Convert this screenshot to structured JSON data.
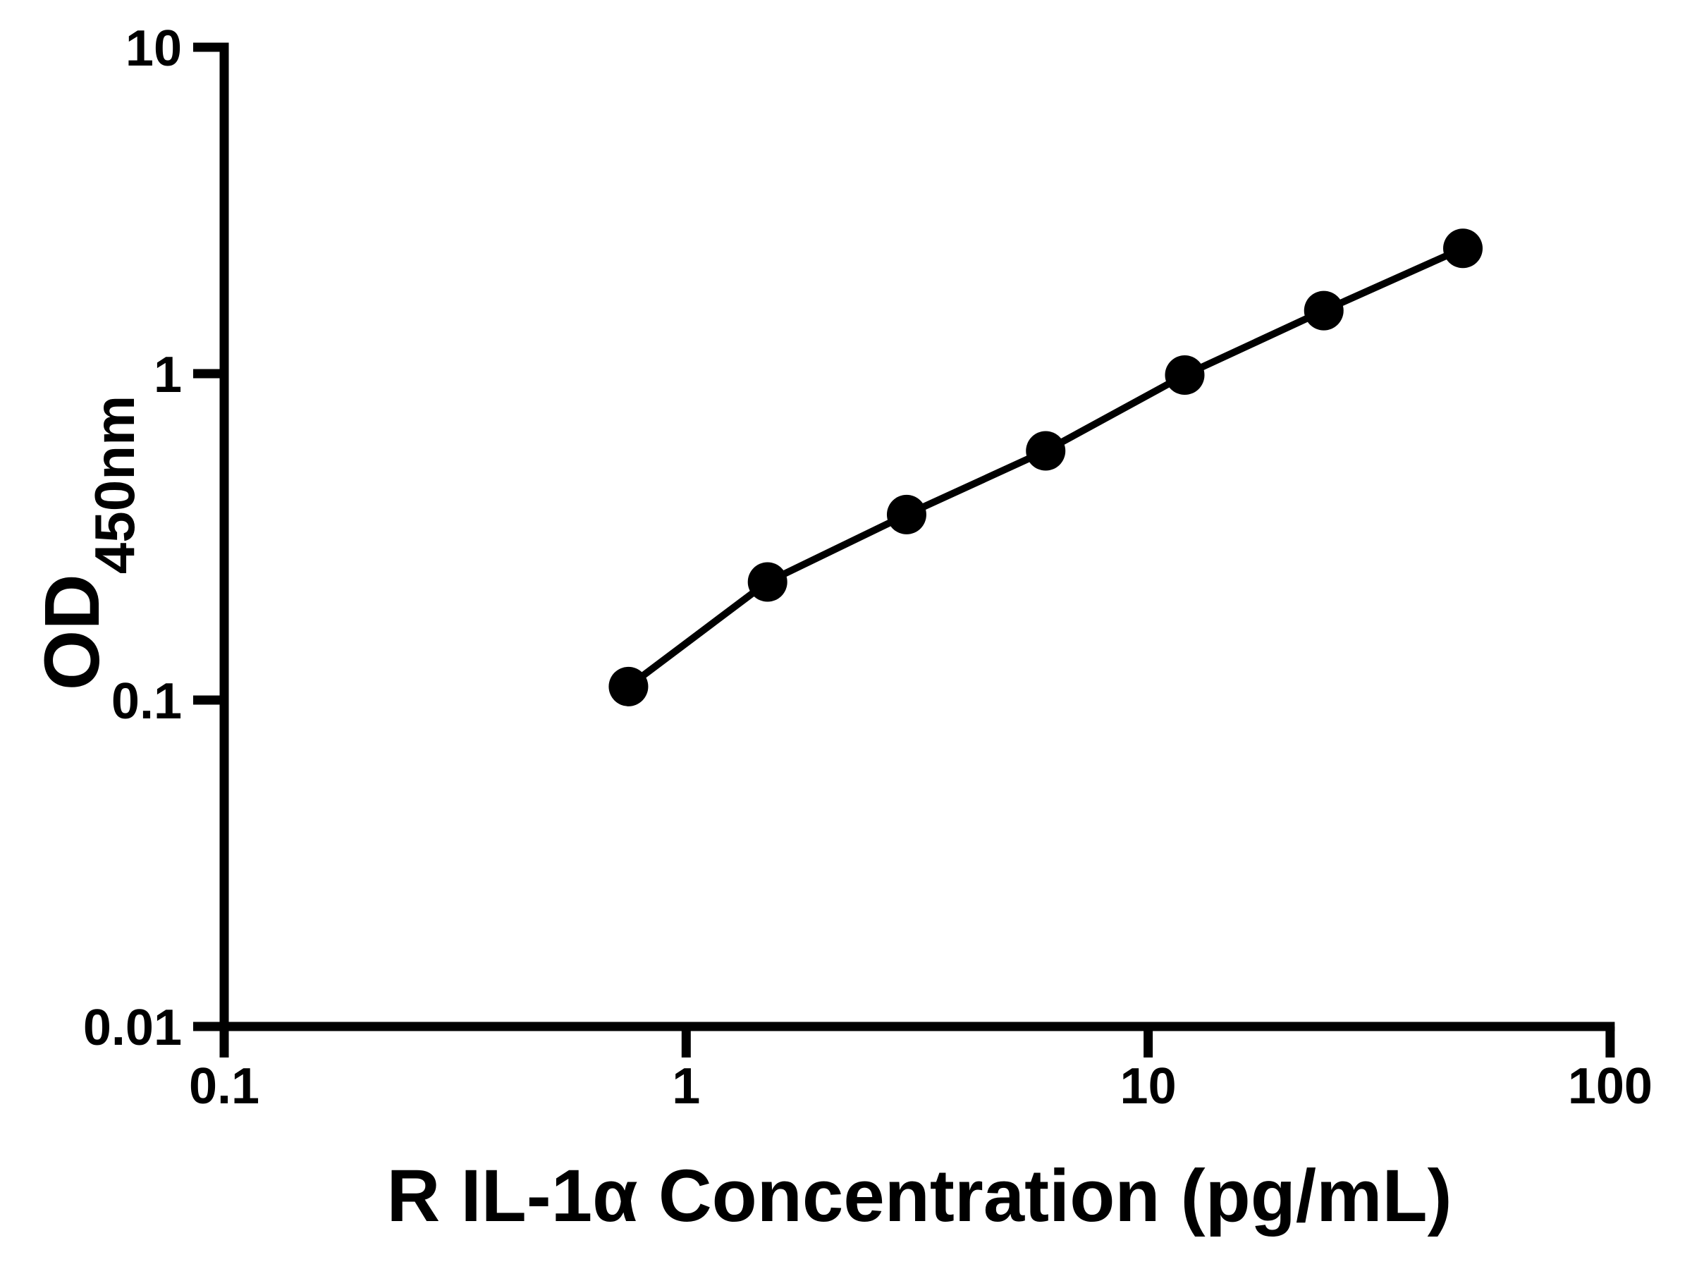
{
  "figure": {
    "background_color": "#ffffff",
    "foreground_color": "#000000"
  },
  "chart_data": {
    "type": "scatter",
    "xlabel": "R IL-1α Concentration (pg/mL)",
    "ylabel_main": "OD",
    "ylabel_sub": "450nm",
    "x_scale": "log",
    "y_scale": "log",
    "xlim": [
      0.1,
      100
    ],
    "ylim": [
      0.01,
      10
    ],
    "x_ticks": [
      0.1,
      1,
      10,
      100
    ],
    "x_tick_labels": [
      "0.1",
      "1",
      "10",
      "100"
    ],
    "y_ticks": [
      10,
      1,
      0.1,
      0.01
    ],
    "y_tick_labels": [
      "10",
      "1",
      "0.1",
      "0.01"
    ],
    "grid": false,
    "legend": "none",
    "line_color": "#000000",
    "marker": "circle",
    "marker_color": "#000000",
    "series": [
      {
        "x": [
          0.75,
          1.5,
          3,
          6,
          12,
          24,
          48
        ],
        "y": [
          0.11,
          0.23,
          0.37,
          0.58,
          0.99,
          1.56,
          2.42
        ]
      }
    ]
  }
}
